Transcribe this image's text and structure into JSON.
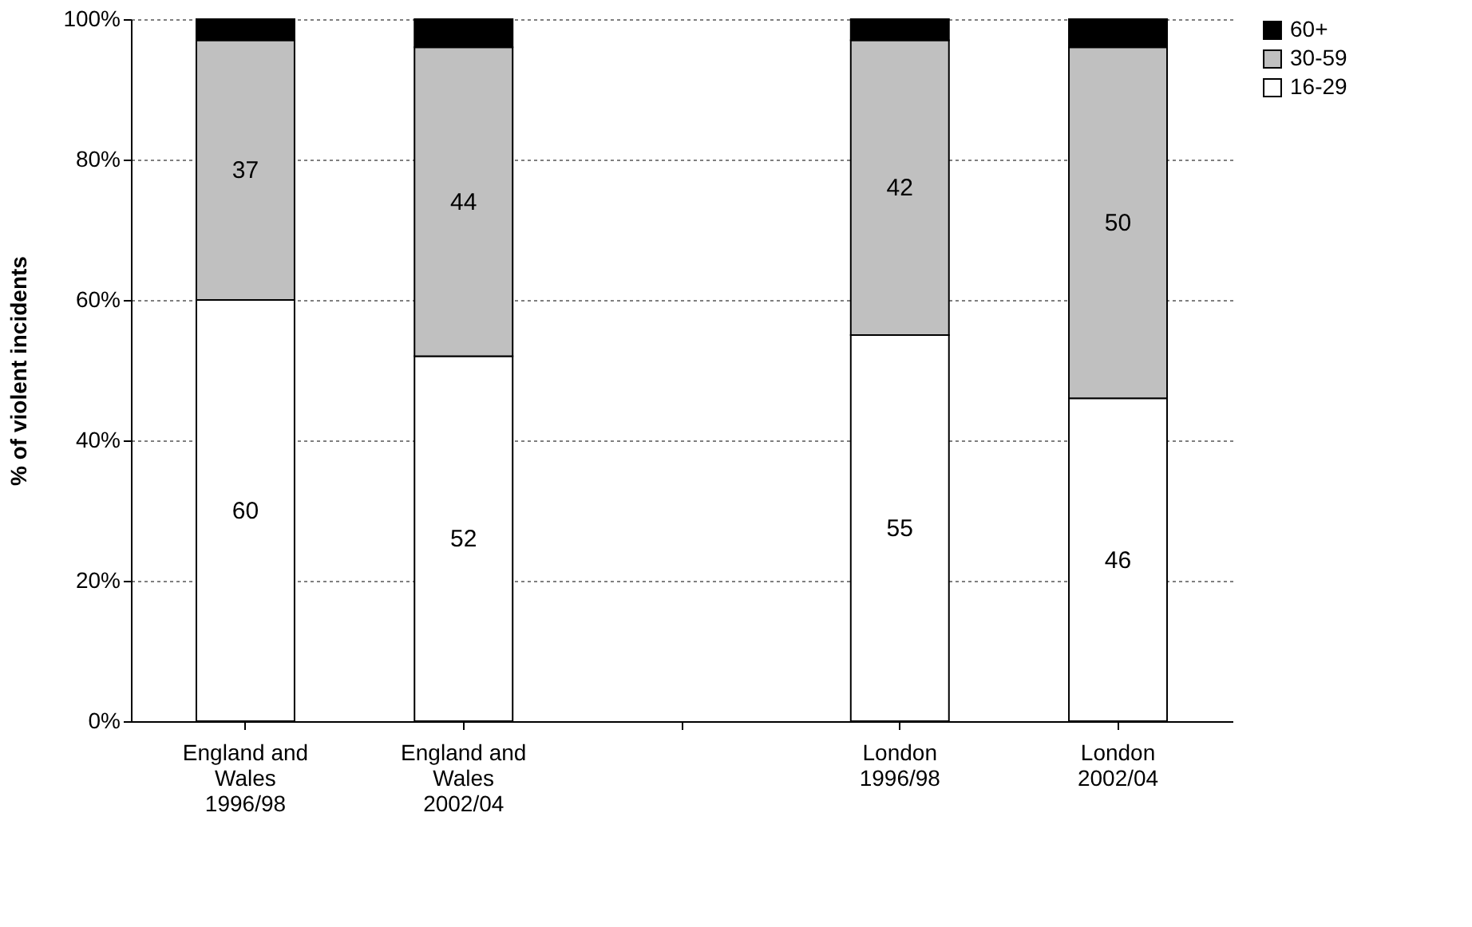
{
  "chart_data": {
    "type": "bar",
    "stacked": true,
    "ylabel": "% of violent incidents",
    "categories": [
      "England and Wales 1996/98",
      "England and Wales 2002/04",
      null,
      "London 1996/98",
      "London 2002/04"
    ],
    "series": [
      {
        "name": "16-29",
        "color": "#ffffff",
        "values": [
          60,
          52,
          null,
          55,
          46
        ],
        "value_labels": [
          "60",
          "52",
          null,
          "55",
          "46"
        ]
      },
      {
        "name": "30-59",
        "color": "#c0c0c0",
        "values": [
          37,
          44,
          null,
          42,
          50
        ],
        "value_labels": [
          "37",
          "44",
          null,
          "42",
          "50"
        ]
      },
      {
        "name": "60+",
        "color": "#000000",
        "values": [
          3,
          4,
          null,
          3,
          4
        ]
      }
    ],
    "ylim": [
      0,
      100
    ],
    "yticks": [
      {
        "value": 0,
        "label": "0%"
      },
      {
        "value": 20,
        "label": "20%"
      },
      {
        "value": 40,
        "label": "40%"
      },
      {
        "value": 60,
        "label": "60%"
      },
      {
        "value": 80,
        "label": "80%"
      },
      {
        "value": 100,
        "label": "100%"
      }
    ],
    "grid": "y",
    "legend": "right"
  }
}
